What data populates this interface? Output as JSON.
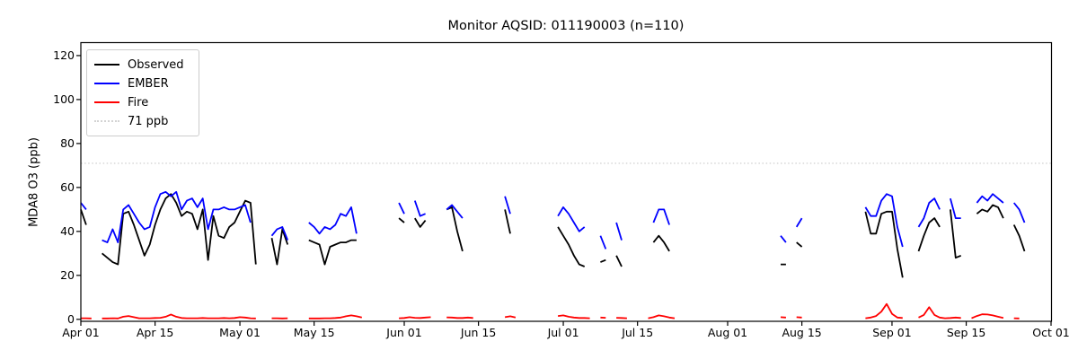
{
  "figure": {
    "title": "Monitor AQSID: 011190003 (n=110)",
    "monitor_aqsid": "011190003",
    "n_obs": 110,
    "ylabel": "MDA8 O3 (ppb)"
  },
  "legend": {
    "items": [
      {
        "label": "Observed",
        "color": "#000000",
        "style": "solid"
      },
      {
        "label": "EMBER",
        "color": "#0000ff",
        "style": "solid"
      },
      {
        "label": "Fire",
        "color": "#ff0000",
        "style": "solid"
      },
      {
        "label": "71 ppb",
        "color": "#d3d3d3",
        "style": "dotted"
      }
    ]
  },
  "chart_data": {
    "type": "line",
    "title": "Monitor AQSID: 011190003 (n=110)",
    "xlabel": "",
    "ylabel": "MDA8 O3 (ppb)",
    "ylim": [
      -2,
      125
    ],
    "yticks": [
      0,
      20,
      40,
      60,
      80,
      100,
      120
    ],
    "x_unit": "days since Apr 01",
    "n_days": 183,
    "xtick_labels": [
      "Apr 01",
      "Apr 15",
      "May 01",
      "May 15",
      "Jun 01",
      "Jun 15",
      "Jul 01",
      "Jul 15",
      "Aug 01",
      "Aug 15",
      "Sep 01",
      "Sep 15",
      "Oct 01"
    ],
    "xtick_days": [
      0,
      14,
      30,
      44,
      61,
      75,
      91,
      105,
      122,
      136,
      153,
      167,
      183
    ],
    "threshold": {
      "value": 71,
      "label": "71 ppb",
      "color": "#d3d3d3",
      "style": "dotted"
    },
    "legend_position": "upper left",
    "grid": false,
    "series": [
      {
        "name": "Observed",
        "color": "#000000",
        "values": [
          50,
          43,
          null,
          null,
          30,
          28,
          26,
          25,
          48,
          49,
          43,
          36,
          29,
          34,
          43,
          50,
          55,
          57,
          53,
          47,
          49,
          48,
          41,
          50,
          27,
          47,
          38,
          37,
          42,
          44,
          49,
          54,
          53,
          25,
          null,
          null,
          37,
          25,
          41,
          34,
          null,
          null,
          null,
          36,
          35,
          34,
          25,
          33,
          34,
          35,
          35,
          36,
          36,
          null,
          null,
          null,
          null,
          null,
          null,
          null,
          46,
          44,
          null,
          46,
          42,
          45,
          null,
          null,
          null,
          50,
          51,
          40,
          31,
          null,
          null,
          null,
          null,
          null,
          null,
          null,
          50,
          39,
          null,
          null,
          null,
          null,
          null,
          null,
          null,
          null,
          42,
          38,
          34,
          29,
          25,
          24,
          null,
          null,
          26,
          27,
          null,
          29,
          24,
          null,
          null,
          null,
          null,
          null,
          35,
          38,
          35,
          31,
          null,
          null,
          null,
          null,
          null,
          null,
          null,
          null,
          null,
          null,
          null,
          null,
          null,
          null,
          null,
          null,
          null,
          null,
          null,
          null,
          25,
          25,
          null,
          35,
          33,
          null,
          null,
          null,
          null,
          null,
          null,
          null,
          null,
          null,
          null,
          null,
          49,
          39,
          39,
          48,
          49,
          49,
          32,
          19,
          null,
          null,
          31,
          38,
          44,
          46,
          42,
          null,
          50,
          28,
          29,
          null,
          null,
          48,
          50,
          49,
          52,
          51,
          46,
          null,
          43,
          38,
          31,
          null,
          null,
          null,
          null
        ]
      },
      {
        "name": "EMBER",
        "color": "#0000ff",
        "values": [
          53,
          50,
          null,
          null,
          36,
          35,
          41,
          35,
          50,
          52,
          48,
          44,
          41,
          42,
          51,
          57,
          58,
          56,
          58,
          50,
          54,
          55,
          51,
          55,
          41,
          50,
          50,
          51,
          50,
          50,
          51,
          52,
          44,
          null,
          null,
          null,
          38,
          41,
          42,
          36,
          null,
          null,
          null,
          44,
          42,
          39,
          42,
          41,
          43,
          48,
          47,
          51,
          39,
          null,
          null,
          null,
          null,
          null,
          null,
          null,
          53,
          48,
          null,
          54,
          47,
          48,
          null,
          null,
          null,
          50,
          52,
          49,
          46,
          null,
          null,
          null,
          null,
          null,
          null,
          null,
          56,
          48,
          null,
          null,
          null,
          null,
          null,
          null,
          null,
          null,
          47,
          51,
          48,
          44,
          40,
          42,
          null,
          null,
          38,
          32,
          null,
          44,
          36,
          null,
          null,
          null,
          null,
          null,
          44,
          50,
          50,
          43,
          null,
          null,
          null,
          null,
          null,
          null,
          null,
          null,
          null,
          null,
          null,
          null,
          null,
          null,
          null,
          null,
          null,
          null,
          null,
          null,
          38,
          35,
          null,
          42,
          46,
          null,
          null,
          null,
          null,
          null,
          null,
          null,
          null,
          null,
          null,
          null,
          51,
          47,
          47,
          54,
          57,
          56,
          42,
          33,
          null,
          null,
          42,
          46,
          53,
          55,
          50,
          null,
          55,
          46,
          46,
          null,
          null,
          53,
          56,
          54,
          57,
          55,
          53,
          null,
          53,
          50,
          44,
          null,
          null,
          null,
          null
        ]
      },
      {
        "name": "Fire",
        "color": "#ff0000",
        "values": [
          0.5,
          0.5,
          0.4,
          null,
          0.4,
          0.4,
          0.5,
          0.4,
          1.2,
          1.5,
          1.0,
          0.5,
          0.5,
          0.5,
          0.6,
          0.7,
          1.2,
          2.2,
          1.2,
          0.6,
          0.5,
          0.5,
          0.5,
          0.6,
          0.5,
          0.5,
          0.5,
          0.6,
          0.5,
          0.6,
          1.0,
          0.8,
          0.5,
          0.4,
          null,
          null,
          0.5,
          0.5,
          0.4,
          0.5,
          null,
          null,
          null,
          0.4,
          0.4,
          0.4,
          0.5,
          0.5,
          0.6,
          0.8,
          1.4,
          1.8,
          1.4,
          0.8,
          null,
          null,
          null,
          null,
          null,
          null,
          0.5,
          0.6,
          1.0,
          0.7,
          0.6,
          0.8,
          1.0,
          null,
          null,
          0.9,
          0.8,
          0.6,
          0.6,
          0.8,
          0.6,
          null,
          null,
          null,
          null,
          null,
          1.0,
          1.4,
          0.8,
          null,
          null,
          null,
          null,
          null,
          null,
          null,
          1.5,
          1.8,
          1.2,
          0.8,
          0.6,
          0.6,
          0.5,
          null,
          0.8,
          0.7,
          null,
          0.7,
          0.6,
          0.5,
          null,
          null,
          null,
          0.5,
          1.0,
          1.8,
          1.4,
          0.8,
          0.5,
          null,
          null,
          null,
          null,
          null,
          null,
          null,
          null,
          null,
          null,
          null,
          null,
          null,
          null,
          null,
          null,
          null,
          null,
          null,
          1.0,
          0.8,
          null,
          1.0,
          0.8,
          null,
          null,
          null,
          null,
          null,
          null,
          null,
          null,
          null,
          null,
          null,
          0.5,
          0.8,
          1.5,
          3.5,
          7.0,
          2.5,
          0.8,
          0.6,
          null,
          null,
          0.8,
          2.0,
          5.5,
          2.0,
          0.8,
          0.5,
          0.6,
          0.8,
          0.6,
          null,
          0.5,
          1.5,
          2.3,
          2.2,
          1.8,
          1.2,
          0.6,
          null,
          0.5,
          0.4,
          null,
          null,
          null,
          null,
          null
        ]
      }
    ]
  }
}
